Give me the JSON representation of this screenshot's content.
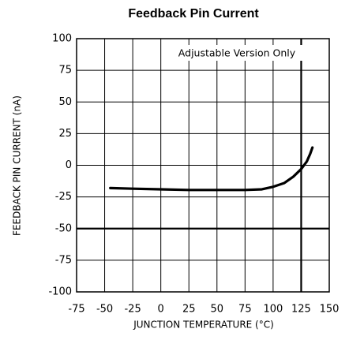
{
  "chart_data": {
    "type": "line",
    "title": "Feedback Pin Current",
    "xlabel": "JUNCTION TEMPERATURE (°C)",
    "ylabel": "FEEDBACK PIN CURRENT (nA)",
    "annotation": "Adjustable Version Only",
    "x": [
      -45,
      -25,
      0,
      25,
      50,
      75,
      90,
      100,
      110,
      118,
      125,
      130,
      133,
      135
    ],
    "values": [
      -18,
      -18.5,
      -19,
      -19.5,
      -19.5,
      -19.5,
      -19,
      -17,
      -14,
      -9,
      -3,
      3,
      9,
      14
    ],
    "color": "#000000",
    "xlim": [
      -75,
      150
    ],
    "xticks": [
      -75,
      -50,
      -25,
      0,
      25,
      50,
      75,
      100,
      125,
      150
    ],
    "ylim": [
      -100,
      100
    ],
    "yticks": [
      -100,
      -75,
      -50,
      -25,
      0,
      25,
      50,
      75,
      100
    ],
    "grid": true,
    "reference_lines": {
      "x": [
        125
      ],
      "y": [
        -50
      ]
    }
  }
}
